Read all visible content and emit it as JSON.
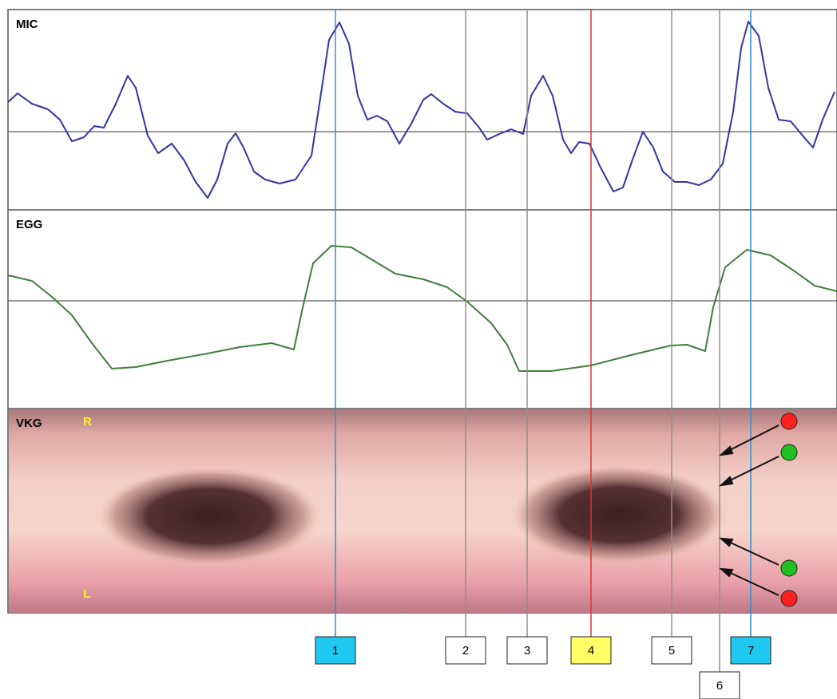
{
  "panels": [
    "MIC",
    "EGG",
    "VKG"
  ],
  "vkg_sides": [
    "R",
    "L"
  ],
  "markers": [
    {
      "label": "1",
      "color": "#1ec8f0",
      "line_color": "#2f8fd8"
    },
    {
      "label": "2",
      "color": "#ffffff",
      "line_color": "#909090"
    },
    {
      "label": "3",
      "color": "#ffffff",
      "line_color": "#909090"
    },
    {
      "label": "4",
      "color": "#ffff66",
      "line_color": "#e83030"
    },
    {
      "label": "5",
      "color": "#ffffff",
      "line_color": "#909090"
    },
    {
      "label": "6",
      "color": "#ffffff",
      "line_color": "#909090"
    },
    {
      "label": "7",
      "color": "#1ec8f0",
      "line_color": "#2f8fd8"
    }
  ]
}
